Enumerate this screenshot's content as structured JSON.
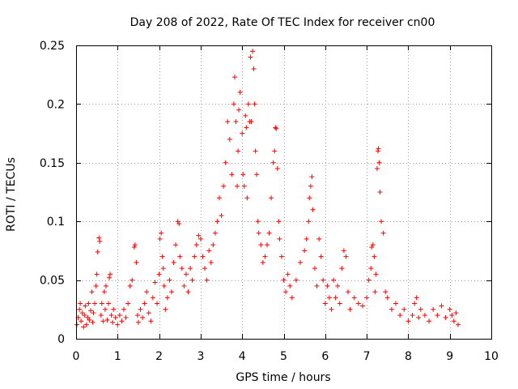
{
  "chart_data": {
    "type": "scatter",
    "title": "Day 208 of 2022, Rate Of TEC Index for receiver cn00",
    "xlabel": "GPS time / hours",
    "ylabel": "ROTI / TECUs",
    "xlim": [
      0,
      10
    ],
    "ylim": [
      0,
      0.25
    ],
    "xticks": [
      0,
      1,
      2,
      3,
      4,
      5,
      6,
      7,
      8,
      9,
      10
    ],
    "xtick_labels": [
      "0",
      "1",
      "2",
      "3",
      "4",
      "5",
      "6",
      "7",
      "8",
      "9",
      "10"
    ],
    "yticks": [
      0,
      0.05,
      0.1,
      0.15,
      0.2,
      0.25
    ],
    "ytick_labels": [
      "0",
      "0.05",
      "0.1",
      "0.15",
      "0.2",
      "0.25"
    ],
    "grid": true,
    "marker": "+",
    "series": [
      {
        "name": "ROTI",
        "color": "#ff0000",
        "points": [
          [
            0.02,
            0.012
          ],
          [
            0.05,
            0.018
          ],
          [
            0.08,
            0.025
          ],
          [
            0.1,
            0.03
          ],
          [
            0.12,
            0.015
          ],
          [
            0.15,
            0.022
          ],
          [
            0.18,
            0.01
          ],
          [
            0.2,
            0.02
          ],
          [
            0.22,
            0.028
          ],
          [
            0.25,
            0.012
          ],
          [
            0.28,
            0.018
          ],
          [
            0.3,
            0.03
          ],
          [
            0.32,
            0.016
          ],
          [
            0.35,
            0.024
          ],
          [
            0.38,
            0.04
          ],
          [
            0.4,
            0.014
          ],
          [
            0.42,
            0.022
          ],
          [
            0.45,
            0.03
          ],
          [
            0.48,
            0.045
          ],
          [
            0.5,
            0.055
          ],
          [
            0.52,
            0.074
          ],
          [
            0.55,
            0.086
          ],
          [
            0.57,
            0.083
          ],
          [
            0.6,
            0.02
          ],
          [
            0.62,
            0.03
          ],
          [
            0.65,
            0.015
          ],
          [
            0.68,
            0.04
          ],
          [
            0.7,
            0.025
          ],
          [
            0.72,
            0.045
          ],
          [
            0.75,
            0.016
          ],
          [
            0.78,
            0.03
          ],
          [
            0.8,
            0.052
          ],
          [
            0.82,
            0.055
          ],
          [
            0.85,
            0.02
          ],
          [
            0.88,
            0.014
          ],
          [
            0.9,
            0.025
          ],
          [
            0.95,
            0.018
          ],
          [
            1.0,
            0.012
          ],
          [
            1.05,
            0.02
          ],
          [
            1.1,
            0.015
          ],
          [
            1.15,
            0.025
          ],
          [
            1.2,
            0.018
          ],
          [
            1.25,
            0.03
          ],
          [
            1.3,
            0.045
          ],
          [
            1.35,
            0.05
          ],
          [
            1.4,
            0.078
          ],
          [
            1.42,
            0.08
          ],
          [
            1.45,
            0.065
          ],
          [
            1.48,
            0.02
          ],
          [
            1.5,
            0.014
          ],
          [
            1.55,
            0.025
          ],
          [
            1.6,
            0.018
          ],
          [
            1.65,
            0.03
          ],
          [
            1.7,
            0.04
          ],
          [
            1.75,
            0.022
          ],
          [
            1.8,
            0.015
          ],
          [
            1.85,
            0.035
          ],
          [
            1.9,
            0.048
          ],
          [
            1.95,
            0.03
          ],
          [
            2.0,
            0.055
          ],
          [
            2.02,
            0.085
          ],
          [
            2.05,
            0.09
          ],
          [
            2.08,
            0.07
          ],
          [
            2.1,
            0.06
          ],
          [
            2.12,
            0.045
          ],
          [
            2.15,
            0.025
          ],
          [
            2.2,
            0.035
          ],
          [
            2.25,
            0.05
          ],
          [
            2.3,
            0.04
          ],
          [
            2.35,
            0.065
          ],
          [
            2.4,
            0.08
          ],
          [
            2.45,
            0.1
          ],
          [
            2.48,
            0.098
          ],
          [
            2.5,
            0.07
          ],
          [
            2.55,
            0.06
          ],
          [
            2.6,
            0.045
          ],
          [
            2.65,
            0.055
          ],
          [
            2.7,
            0.04
          ],
          [
            2.75,
            0.06
          ],
          [
            2.8,
            0.05
          ],
          [
            2.85,
            0.07
          ],
          [
            2.9,
            0.08
          ],
          [
            2.95,
            0.088
          ],
          [
            3.0,
            0.085
          ],
          [
            3.05,
            0.07
          ],
          [
            3.1,
            0.06
          ],
          [
            3.15,
            0.05
          ],
          [
            3.2,
            0.075
          ],
          [
            3.25,
            0.065
          ],
          [
            3.3,
            0.08
          ],
          [
            3.35,
            0.09
          ],
          [
            3.4,
            0.1
          ],
          [
            3.45,
            0.12
          ],
          [
            3.5,
            0.105
          ],
          [
            3.55,
            0.13
          ],
          [
            3.6,
            0.15
          ],
          [
            3.65,
            0.185
          ],
          [
            3.7,
            0.17
          ],
          [
            3.75,
            0.14
          ],
          [
            3.8,
            0.2
          ],
          [
            3.82,
            0.223
          ],
          [
            3.85,
            0.185
          ],
          [
            3.88,
            0.13
          ],
          [
            3.9,
            0.16
          ],
          [
            3.92,
            0.195
          ],
          [
            3.95,
            0.21
          ],
          [
            4.0,
            0.175
          ],
          [
            4.02,
            0.14
          ],
          [
            4.05,
            0.13
          ],
          [
            4.08,
            0.19
          ],
          [
            4.1,
            0.18
          ],
          [
            4.12,
            0.12
          ],
          [
            4.15,
            0.2
          ],
          [
            4.18,
            0.185
          ],
          [
            4.2,
            0.24
          ],
          [
            4.22,
            0.185
          ],
          [
            4.25,
            0.245
          ],
          [
            4.28,
            0.23
          ],
          [
            4.3,
            0.2
          ],
          [
            4.32,
            0.16
          ],
          [
            4.35,
            0.14
          ],
          [
            4.38,
            0.1
          ],
          [
            4.4,
            0.09
          ],
          [
            4.45,
            0.08
          ],
          [
            4.5,
            0.065
          ],
          [
            4.55,
            0.07
          ],
          [
            4.6,
            0.08
          ],
          [
            4.65,
            0.09
          ],
          [
            4.7,
            0.12
          ],
          [
            4.75,
            0.15
          ],
          [
            4.78,
            0.16
          ],
          [
            4.8,
            0.18
          ],
          [
            4.82,
            0.179
          ],
          [
            4.85,
            0.145
          ],
          [
            4.88,
            0.1
          ],
          [
            4.9,
            0.085
          ],
          [
            4.95,
            0.07
          ],
          [
            5.0,
            0.05
          ],
          [
            5.05,
            0.04
          ],
          [
            5.1,
            0.055
          ],
          [
            5.15,
            0.045
          ],
          [
            5.2,
            0.035
          ],
          [
            5.3,
            0.05
          ],
          [
            5.4,
            0.065
          ],
          [
            5.5,
            0.075
          ],
          [
            5.55,
            0.085
          ],
          [
            5.6,
            0.1
          ],
          [
            5.62,
            0.12
          ],
          [
            5.65,
            0.13
          ],
          [
            5.68,
            0.138
          ],
          [
            5.7,
            0.11
          ],
          [
            5.75,
            0.06
          ],
          [
            5.8,
            0.045
          ],
          [
            5.85,
            0.085
          ],
          [
            5.9,
            0.07
          ],
          [
            5.95,
            0.05
          ],
          [
            6.0,
            0.03
          ],
          [
            6.05,
            0.045
          ],
          [
            6.1,
            0.035
          ],
          [
            6.15,
            0.025
          ],
          [
            6.2,
            0.05
          ],
          [
            6.25,
            0.035
          ],
          [
            6.3,
            0.045
          ],
          [
            6.35,
            0.03
          ],
          [
            6.4,
            0.06
          ],
          [
            6.45,
            0.075
          ],
          [
            6.5,
            0.07
          ],
          [
            6.55,
            0.04
          ],
          [
            6.6,
            0.025
          ],
          [
            6.7,
            0.035
          ],
          [
            6.8,
            0.03
          ],
          [
            6.9,
            0.028
          ],
          [
            7.0,
            0.035
          ],
          [
            7.05,
            0.05
          ],
          [
            7.1,
            0.06
          ],
          [
            7.12,
            0.078
          ],
          [
            7.15,
            0.08
          ],
          [
            7.18,
            0.07
          ],
          [
            7.2,
            0.04
          ],
          [
            7.22,
            0.055
          ],
          [
            7.25,
            0.145
          ],
          [
            7.27,
            0.16
          ],
          [
            7.28,
            0.162
          ],
          [
            7.3,
            0.15
          ],
          [
            7.32,
            0.125
          ],
          [
            7.35,
            0.1
          ],
          [
            7.4,
            0.09
          ],
          [
            7.45,
            0.04
          ],
          [
            7.5,
            0.035
          ],
          [
            7.6,
            0.025
          ],
          [
            7.7,
            0.03
          ],
          [
            7.8,
            0.02
          ],
          [
            7.9,
            0.025
          ],
          [
            8.0,
            0.015
          ],
          [
            8.1,
            0.02
          ],
          [
            8.15,
            0.03
          ],
          [
            8.2,
            0.035
          ],
          [
            8.25,
            0.018
          ],
          [
            8.3,
            0.025
          ],
          [
            8.4,
            0.02
          ],
          [
            8.5,
            0.015
          ],
          [
            8.6,
            0.025
          ],
          [
            8.7,
            0.02
          ],
          [
            8.8,
            0.028
          ],
          [
            8.9,
            0.018
          ],
          [
            9.0,
            0.025
          ],
          [
            9.05,
            0.02
          ],
          [
            9.1,
            0.015
          ],
          [
            9.15,
            0.022
          ],
          [
            9.2,
            0.012
          ]
        ]
      }
    ]
  }
}
